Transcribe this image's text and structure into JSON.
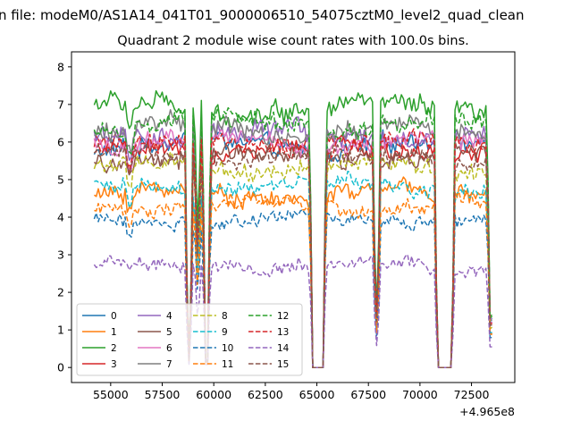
{
  "window": {
    "suptitle": "n file: modeM0/AS1A14_041T01_9000006510_54075cztM0_level2_quad_clean"
  },
  "chart_data": {
    "type": "line",
    "title": "Quadrant 2 module wise count rates with 100.0s bins.",
    "xlabel": "",
    "ylabel": "",
    "x_offset_label": "+4.965e8",
    "xlim": [
      53100,
      74600
    ],
    "ylim": [
      -0.4,
      8.4
    ],
    "x_ticks": [
      55000,
      57500,
      60000,
      62500,
      65000,
      67500,
      70000,
      72500
    ],
    "x_tick_labels": [
      "55000",
      "57500",
      "60000",
      "62500",
      "65000",
      "67500",
      "70000",
      "72500"
    ],
    "y_ticks": [
      0,
      1,
      2,
      3,
      4,
      5,
      6,
      7,
      8
    ],
    "y_tick_labels": [
      "0",
      "1",
      "2",
      "3",
      "4",
      "5",
      "6",
      "7",
      "8"
    ],
    "gaps": [
      {
        "start": 55850,
        "end": 56000,
        "depth": 0.9
      },
      {
        "start": 58750,
        "end": 58850,
        "depth": 0.03
      },
      {
        "start": 59200,
        "end": 59250,
        "depth": 0.55
      },
      {
        "start": 59600,
        "end": 59700,
        "depth": 0.03
      },
      {
        "start": 64800,
        "end": 65300,
        "depth": 0.0
      },
      {
        "start": 67850,
        "end": 67950,
        "depth": 0.22
      },
      {
        "start": 70850,
        "end": 71550,
        "depth": 0.0
      },
      {
        "start": 73400,
        "end": 73500,
        "depth": 0.2
      }
    ],
    "data_range": [
      54200,
      73500
    ],
    "bin": 100,
    "series": [
      {
        "name": "0",
        "base": 5.9,
        "noise": 0.28,
        "color": "#1f77b4",
        "dash": "solid"
      },
      {
        "name": "1",
        "base": 4.6,
        "noise": 0.25,
        "color": "#ff7f0e",
        "dash": "solid"
      },
      {
        "name": "2",
        "base": 6.9,
        "noise": 0.3,
        "color": "#2ca02c",
        "dash": "solid"
      },
      {
        "name": "3",
        "base": 5.8,
        "noise": 0.26,
        "color": "#d62728",
        "dash": "solid"
      },
      {
        "name": "4",
        "base": 6.2,
        "noise": 0.3,
        "color": "#9467bd",
        "dash": "solid"
      },
      {
        "name": "5",
        "base": 5.6,
        "noise": 0.26,
        "color": "#8c564b",
        "dash": "solid"
      },
      {
        "name": "6",
        "base": 6.0,
        "noise": 0.27,
        "color": "#e377c2",
        "dash": "solid"
      },
      {
        "name": "7",
        "base": 6.3,
        "noise": 0.3,
        "color": "#7f7f7f",
        "dash": "solid"
      },
      {
        "name": "8",
        "base": 5.3,
        "noise": 0.25,
        "color": "#bcbd22",
        "dash": "dashed"
      },
      {
        "name": "9",
        "base": 4.8,
        "noise": 0.22,
        "color": "#17becf",
        "dash": "dashed"
      },
      {
        "name": "10",
        "base": 3.9,
        "noise": 0.22,
        "color": "#1f77b4",
        "dash": "dashed"
      },
      {
        "name": "11",
        "base": 4.3,
        "noise": 0.22,
        "color": "#ff7f0e",
        "dash": "dashed"
      },
      {
        "name": "12",
        "base": 6.5,
        "noise": 0.28,
        "color": "#2ca02c",
        "dash": "dashed"
      },
      {
        "name": "13",
        "base": 5.9,
        "noise": 0.26,
        "color": "#d62728",
        "dash": "dashed"
      },
      {
        "name": "14",
        "base": 2.7,
        "noise": 0.2,
        "color": "#9467bd",
        "dash": "dashed"
      },
      {
        "name": "15",
        "base": 5.6,
        "noise": 0.25,
        "color": "#8c564b",
        "dash": "dashed"
      }
    ]
  }
}
